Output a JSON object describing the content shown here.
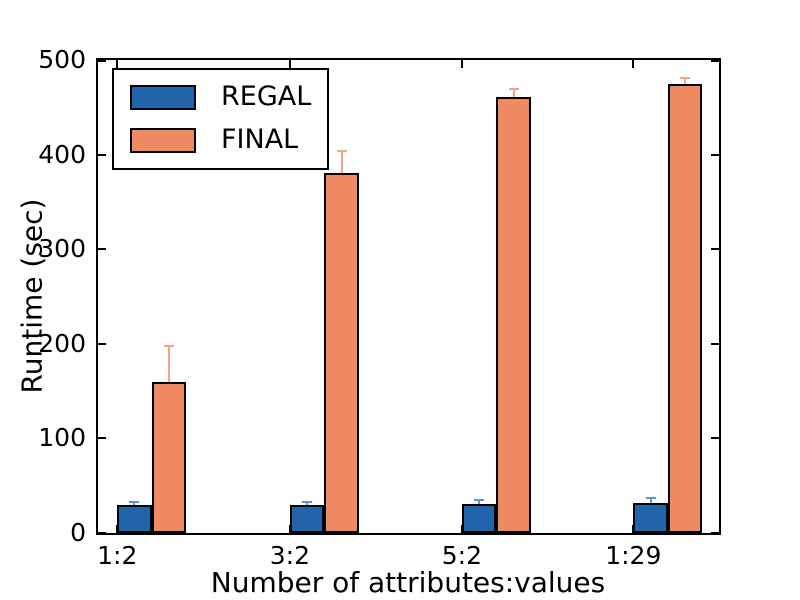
{
  "chart_data": {
    "type": "bar",
    "title": "",
    "xlabel": "Number of attributes:values",
    "ylabel": "Runtime (sec)",
    "categories": [
      "1:2",
      "3:2",
      "5:2",
      "1:29"
    ],
    "series": [
      {
        "name": "REGAL",
        "color": "#2166ac",
        "error_color": "#5b94d1",
        "values": [
          30,
          30,
          31,
          32
        ],
        "errors": [
          3,
          3,
          4,
          5
        ]
      },
      {
        "name": "FINAL",
        "color": "#ef8a62",
        "error_color": "#f4a582",
        "values": [
          160,
          381,
          461,
          475
        ],
        "errors": [
          38,
          23,
          8,
          6
        ]
      }
    ],
    "ylim": [
      0,
      500
    ],
    "yticks": [
      0,
      100,
      200,
      300,
      400,
      500
    ],
    "grid": false,
    "legend_position": "upper left",
    "frame_color": "#000000",
    "layout": {
      "group_left_fracs": [
        0.031,
        0.309,
        0.586,
        0.862
      ],
      "bar_width_frac": 0.0555
    }
  }
}
